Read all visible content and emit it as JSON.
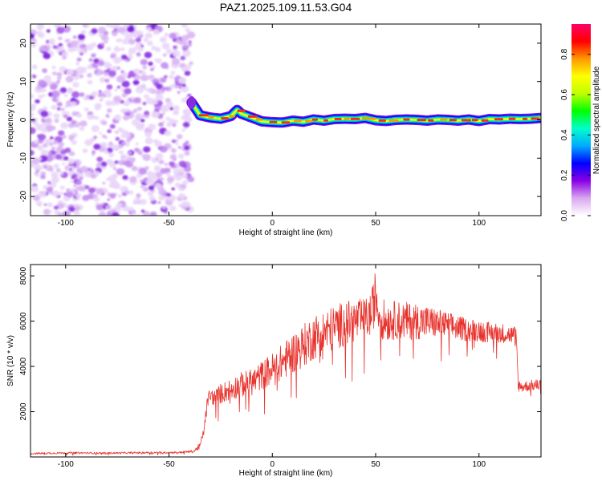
{
  "chart_data": [
    {
      "type": "heatmap",
      "title": "PAZ1.2025.109.11.53.G04",
      "xlabel": "Height of straight line (km)",
      "ylabel": "Frequency (Hz)",
      "xlim": [
        -117,
        130
      ],
      "ylim": [
        -25,
        25
      ],
      "xticks": [
        -100,
        -50,
        0,
        50,
        100
      ],
      "yticks": [
        -20,
        -10,
        0,
        10,
        20
      ],
      "xtick_labels": [
        "-100",
        "-50",
        "0",
        "50",
        "100"
      ],
      "ytick_labels": [
        "-20",
        "-10",
        "0",
        "10",
        "20"
      ],
      "noise_region_x": [
        -117,
        -39
      ],
      "ridge": {
        "x": [
          -39,
          -35,
          -30,
          -25,
          -20,
          -17,
          -15,
          -10,
          -5,
          0,
          5,
          10,
          15,
          20,
          25,
          30,
          35,
          40,
          45,
          50,
          55,
          60,
          65,
          70,
          75,
          80,
          85,
          90,
          95,
          100,
          105,
          110,
          115,
          120,
          125,
          130
        ],
        "y": [
          4.5,
          1.2,
          0.6,
          0.3,
          1.0,
          2.6,
          1.6,
          0.6,
          -0.4,
          -0.6,
          -0.7,
          -0.2,
          -0.5,
          0.1,
          -0.2,
          0.2,
          0.3,
          0.2,
          0.5,
          -0.1,
          -0.3,
          0.0,
          0.1,
          0.0,
          -0.2,
          0.1,
          0.0,
          -0.2,
          0.1,
          -0.3,
          0.2,
          0.1,
          0.3,
          0.2,
          0.3,
          0.5
        ]
      },
      "colorbar": {
        "label": "Normalized spectral amplitude",
        "range": [
          0.0,
          0.95
        ],
        "ticks": [
          0.0,
          0.2,
          0.4,
          0.6,
          0.8
        ],
        "tick_labels": [
          "0.0",
          "0.2",
          "0.4",
          "0.6",
          "0.8"
        ],
        "colors": [
          "#ffffff",
          "#d9a8f0",
          "#8a00e6",
          "#0000ff",
          "#00aaff",
          "#00ffcc",
          "#00ff00",
          "#bfff00",
          "#ffff00",
          "#ff9900",
          "#ff0000",
          "#ff0066"
        ]
      },
      "grid": false
    },
    {
      "type": "line",
      "xlabel": "Height of straight line (km)",
      "ylabel": "SNR (10 * v/v)",
      "xlim": [
        -117,
        130
      ],
      "ylim": [
        0,
        8500
      ],
      "xticks": [
        -100,
        -50,
        0,
        50,
        100
      ],
      "yticks": [
        2000,
        4000,
        6000,
        8000
      ],
      "xtick_labels": [
        "-100",
        "-50",
        "0",
        "50",
        "100"
      ],
      "ytick_labels": [
        "2000",
        "4000",
        "6000",
        "8000"
      ],
      "color": "#e8332d",
      "series": [
        {
          "x": [
            -117,
            -100,
            -80,
            -60,
            -45,
            -38,
            -35,
            -33,
            -32,
            -31,
            -30,
            -28,
            -25,
            -20,
            -15,
            -10,
            -5,
            0,
            5,
            10,
            15,
            20,
            25,
            30,
            35,
            40,
            45,
            48,
            50,
            52,
            55,
            60,
            65,
            70,
            75,
            80,
            85,
            90,
            95,
            100,
            105,
            110,
            115,
            118,
            119,
            120,
            125,
            130
          ],
          "values": [
            150,
            180,
            170,
            190,
            200,
            250,
            500,
            1200,
            2000,
            2600,
            2700,
            2600,
            2800,
            3000,
            3200,
            3300,
            3600,
            3900,
            4200,
            4600,
            4900,
            5300,
            5500,
            5700,
            5900,
            6000,
            6100,
            6300,
            7200,
            6200,
            6000,
            6050,
            6000,
            6000,
            5950,
            5900,
            5800,
            5700,
            5600,
            5600,
            5500,
            5500,
            5400,
            5400,
            3200,
            3100,
            3150,
            3200
          ],
          "noise": [
            40,
            40,
            40,
            40,
            40,
            60,
            150,
            200,
            300,
            350,
            350,
            350,
            450,
            500,
            550,
            600,
            650,
            700,
            800,
            900,
            950,
            1000,
            1000,
            1000,
            1000,
            950,
            900,
            1000,
            1200,
            950,
            900,
            850,
            850,
            800,
            750,
            650,
            600,
            550,
            500,
            500,
            450,
            450,
            400,
            400,
            300,
            250,
            250,
            250
          ]
        }
      ],
      "grid": false
    }
  ]
}
